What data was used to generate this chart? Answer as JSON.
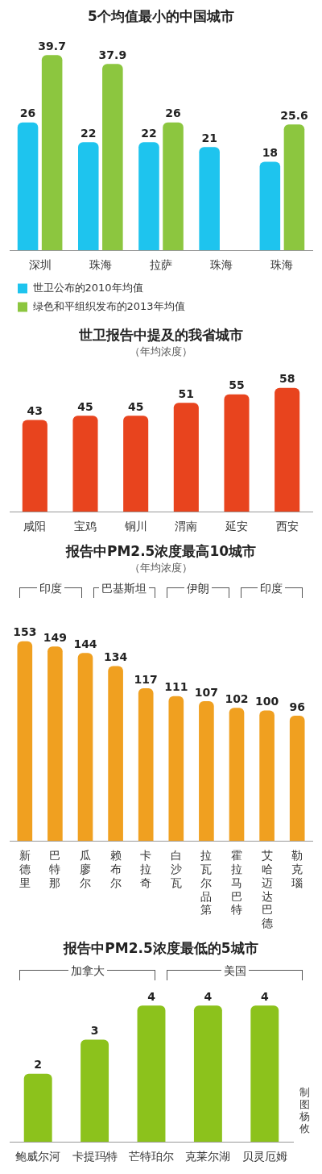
{
  "chart_data": [
    {
      "type": "bar",
      "title": "5个均值最小的中国城市",
      "categories": [
        "深圳",
        "珠海",
        "拉萨",
        "珠海",
        "珠海"
      ],
      "series": [
        {
          "name": "世卫公布的2010年均值",
          "color": "#1ec4ee",
          "values": [
            26,
            22,
            22,
            21,
            18
          ]
        },
        {
          "name": "绿色和平组织发布的2013年均值",
          "color": "#8cc63f",
          "values": [
            39.7,
            37.9,
            26,
            null,
            25.6
          ]
        }
      ],
      "data_labels": true,
      "legend": "bottom",
      "tick_labels": "x",
      "grid": false
    },
    {
      "type": "bar",
      "title": "世卫报告中提及的我省城市",
      "subtitle": "（年均浓度）",
      "categories": [
        "咸阳",
        "宝鸡",
        "铜川",
        "渭南",
        "延安",
        "西安"
      ],
      "values": [
        43,
        45,
        45,
        51,
        55,
        58
      ],
      "color": "#e8441e",
      "data_labels": true,
      "tick_labels": "x",
      "grid": false
    },
    {
      "type": "bar",
      "title": "报告中PM2.5浓度最高10城市",
      "subtitle": "（年均浓度）",
      "categories": [
        "新德里",
        "巴特那",
        "瓜廖尔",
        "赖布尔",
        "卡拉奇",
        "白沙瓦",
        "拉瓦尔品第",
        "霍拉马巴特",
        "艾哈迈达巴德",
        "勒克瑙"
      ],
      "values": [
        153,
        149,
        144,
        134,
        117,
        111,
        107,
        102,
        100,
        96
      ],
      "color": "#f0a020",
      "data_labels": true,
      "tick_labels": "x",
      "grid": false,
      "annotations": [
        "印度",
        "巴基斯坦",
        "伊朗",
        "印度"
      ]
    },
    {
      "type": "bar",
      "title": "报告中PM2.5浓度最低的5城市",
      "categories": [
        "鲍威尔河",
        "卡提玛特",
        "芒特珀尔",
        "克莱尔湖",
        "贝灵厄姆"
      ],
      "values": [
        2,
        3,
        4,
        4,
        4
      ],
      "color": "#8cc21c",
      "data_labels": true,
      "tick_labels": "x",
      "grid": false,
      "annotations": [
        "加拿大",
        "美国",
        "制图杨攸"
      ]
    }
  ]
}
